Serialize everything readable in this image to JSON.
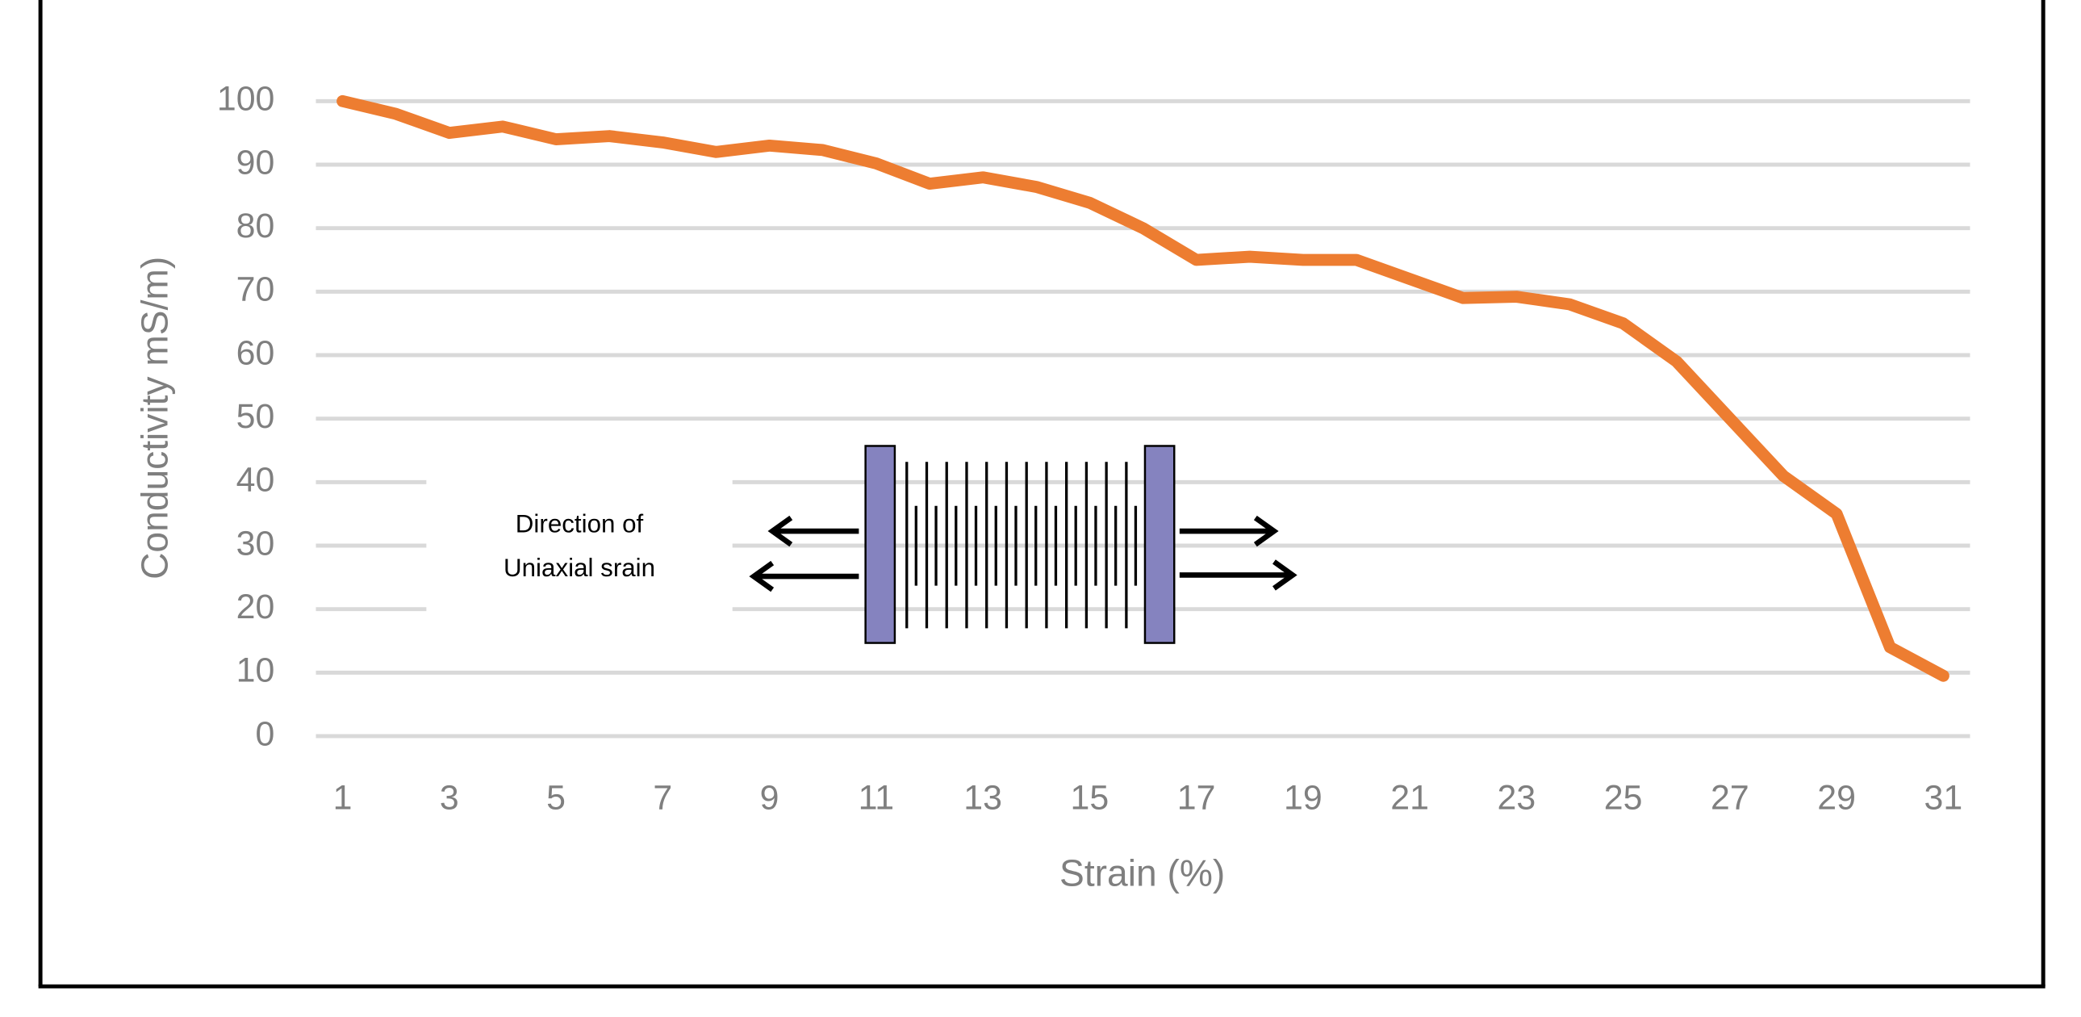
{
  "chart_data": {
    "type": "line",
    "x_label": "Strain (%)",
    "y_label": "Conductivity mS/m)",
    "categories": [
      1,
      null,
      3,
      null,
      5,
      null,
      7,
      null,
      9,
      null,
      11,
      null,
      13,
      null,
      15,
      null,
      17,
      null,
      19,
      null,
      21,
      null,
      23,
      null,
      25,
      null,
      27,
      null,
      29,
      null,
      31
    ],
    "series": [
      {
        "name": null,
        "color": "#ed7d31",
        "values": [
          100,
          98,
          95,
          96,
          94,
          94.5,
          93.5,
          92,
          93,
          92.3,
          90.2,
          87,
          88,
          86.5,
          84,
          80,
          75,
          75.5,
          75,
          75,
          72,
          69,
          69.2,
          68,
          65,
          59,
          50,
          41,
          35,
          14,
          9.5
        ]
      }
    ],
    "ylim": [
      0,
      100
    ],
    "yticks": [
      0,
      10,
      20,
      30,
      40,
      50,
      60,
      70,
      80,
      90,
      100
    ],
    "grid": true,
    "annotations": [
      "Direction of",
      "Uniaxial srain"
    ]
  }
}
